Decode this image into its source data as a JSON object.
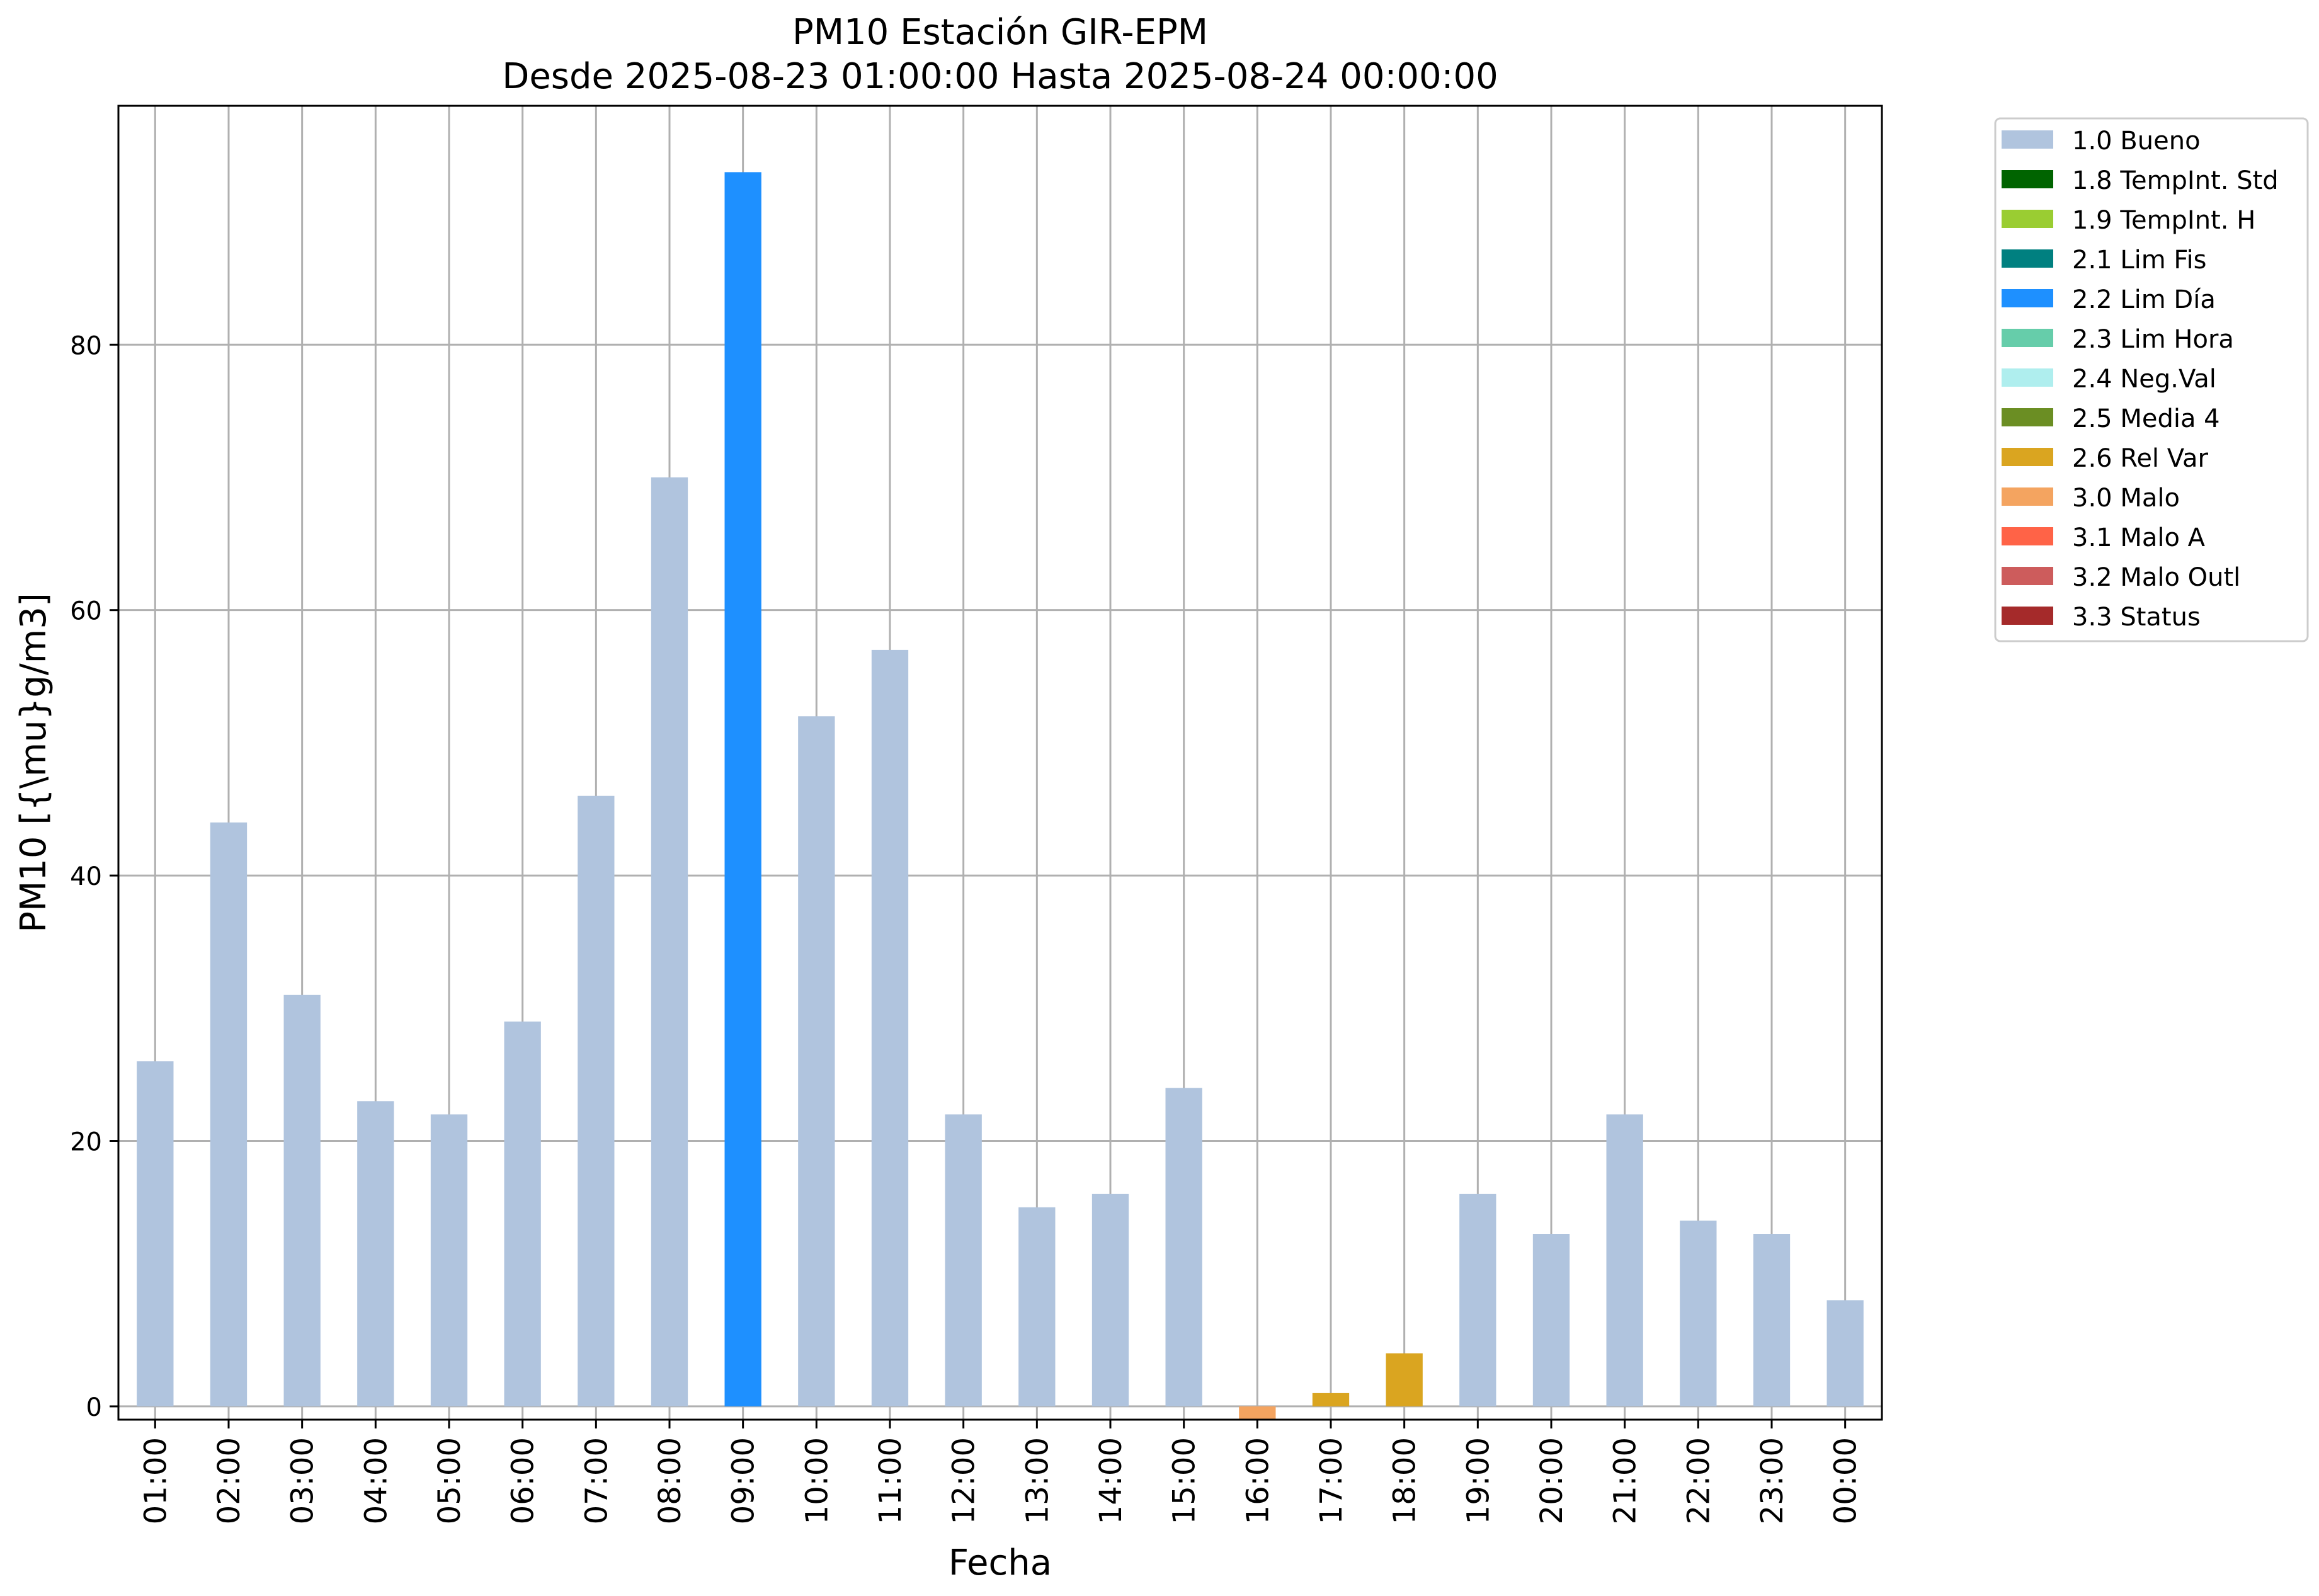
{
  "chart_data": {
    "type": "bar",
    "title_line1": "PM10 Estación GIR-EPM",
    "title_line2": "Desde 2025-08-23 01:00:00 Hasta 2025-08-24 00:00:00",
    "xlabel": "Fecha",
    "ylabel": "PM10 [{\\mu}g/m3]",
    "ylim": [
      -1,
      98
    ],
    "yticks": [
      0,
      20,
      40,
      60,
      80
    ],
    "grid": true,
    "legend_position": "outside-right",
    "categories": [
      "01:00",
      "02:00",
      "03:00",
      "04:00",
      "05:00",
      "06:00",
      "07:00",
      "08:00",
      "09:00",
      "10:00",
      "11:00",
      "12:00",
      "13:00",
      "14:00",
      "15:00",
      "16:00",
      "17:00",
      "18:00",
      "19:00",
      "20:00",
      "21:00",
      "22:00",
      "23:00",
      "00:00"
    ],
    "values": [
      26,
      44,
      31,
      23,
      22,
      29,
      46,
      70,
      93,
      52,
      57,
      22,
      15,
      16,
      24,
      -1,
      1,
      4,
      16,
      13,
      22,
      14,
      13,
      8
    ],
    "flags": [
      "1.0 Bueno",
      "1.0 Bueno",
      "1.0 Bueno",
      "1.0 Bueno",
      "1.0 Bueno",
      "1.0 Bueno",
      "1.0 Bueno",
      "1.0 Bueno",
      "2.2 Lim Día",
      "1.0 Bueno",
      "1.0 Bueno",
      "1.0 Bueno",
      "1.0 Bueno",
      "1.0 Bueno",
      "1.0 Bueno",
      "3.0 Malo",
      "2.6 Rel Var",
      "2.6 Rel Var",
      "1.0 Bueno",
      "1.0 Bueno",
      "1.0 Bueno",
      "1.0 Bueno",
      "1.0 Bueno",
      "1.0 Bueno"
    ],
    "legend": [
      {
        "label": "1.0 Bueno",
        "color": "#b0c4de"
      },
      {
        "label": "1.8 TempInt. Std",
        "color": "#006400"
      },
      {
        "label": "1.9 TempInt. H",
        "color": "#9acd32"
      },
      {
        "label": "2.1 Lim Fis",
        "color": "#008080"
      },
      {
        "label": "2.2 Lim Día",
        "color": "#1e90ff"
      },
      {
        "label": "2.3 Lim Hora",
        "color": "#66cdaa"
      },
      {
        "label": "2.4 Neg.Val",
        "color": "#afeeee"
      },
      {
        "label": "2.5 Media 4",
        "color": "#6b8e23"
      },
      {
        "label": "2.6 Rel Var",
        "color": "#daa520"
      },
      {
        "label": "3.0 Malo",
        "color": "#f4a460"
      },
      {
        "label": "3.1 Malo A",
        "color": "#ff6347"
      },
      {
        "label": "3.2 Malo Outl",
        "color": "#cd5c5c"
      },
      {
        "label": "3.3 Status",
        "color": "#a52a2a"
      }
    ]
  }
}
